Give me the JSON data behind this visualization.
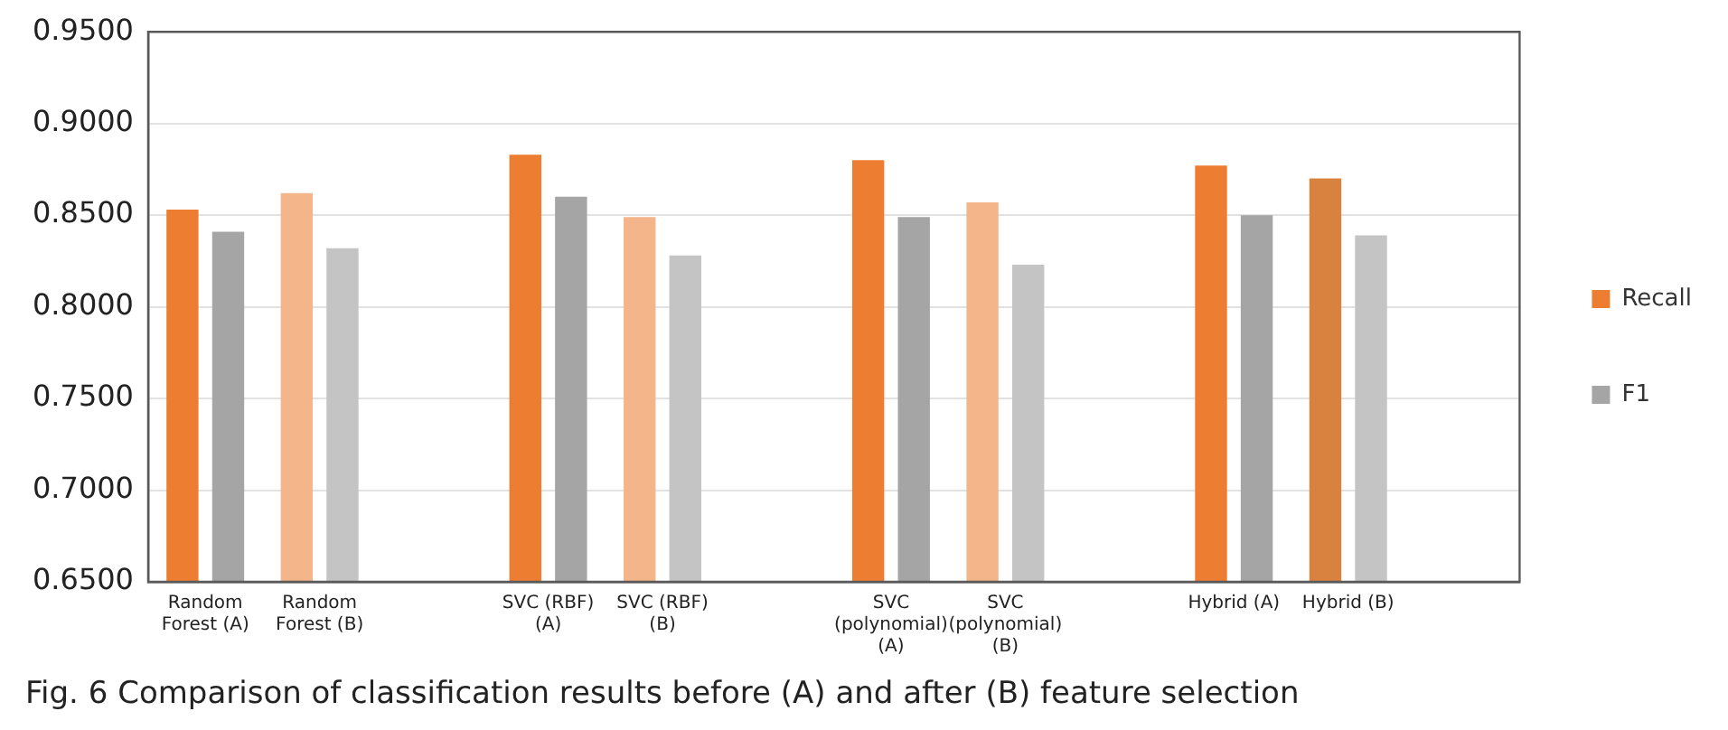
{
  "chart_data": {
    "type": "bar",
    "categories": [
      "Random Forest (A)",
      "Random Forest (B)",
      null,
      "SVC (RBF) (A)",
      "SVC (RBF) (B)",
      null,
      "SVC (polynomial) (A)",
      "SVC (polynomial) (B)",
      null,
      "Hybrid (A)",
      "Hybrid (B)",
      null
    ],
    "series": [
      {
        "name": "Recall",
        "color": "#ed7d31",
        "colors": [
          "#ed7d31",
          "#f5b58a",
          null,
          "#ed7d31",
          "#f5b58a",
          null,
          "#ed7d31",
          "#f5b58a",
          null,
          "#ed7d31",
          "#d9823f",
          null
        ],
        "values": [
          0.853,
          0.862,
          null,
          0.883,
          0.849,
          null,
          0.88,
          0.857,
          null,
          0.877,
          0.87,
          null
        ]
      },
      {
        "name": "F1",
        "color": "#a5a5a5",
        "colors": [
          "#a5a5a5",
          "#c4c4c4",
          null,
          "#a5a5a5",
          "#c4c4c4",
          null,
          "#a5a5a5",
          "#c4c4c4",
          null,
          "#a5a5a5",
          "#c4c4c4",
          null
        ],
        "values": [
          0.841,
          0.832,
          null,
          0.86,
          0.828,
          null,
          0.849,
          0.823,
          null,
          0.85,
          0.839,
          null
        ]
      }
    ],
    "ylim": [
      0.65,
      0.95
    ],
    "yticks": [
      {
        "value": 0.65,
        "label": "0.6500"
      },
      {
        "value": 0.7,
        "label": "0.7000"
      },
      {
        "value": 0.75,
        "label": "0.7500"
      },
      {
        "value": 0.8,
        "label": "0.8000"
      },
      {
        "value": 0.85,
        "label": "0.8500"
      },
      {
        "value": 0.9,
        "label": "0.9000"
      },
      {
        "value": 0.95,
        "label": "0.9500"
      }
    ],
    "grid": "y",
    "legend": "right",
    "annotations": [
      "Fig. 6  Comparison of classification results before (A) and after (B) feature selection"
    ]
  }
}
